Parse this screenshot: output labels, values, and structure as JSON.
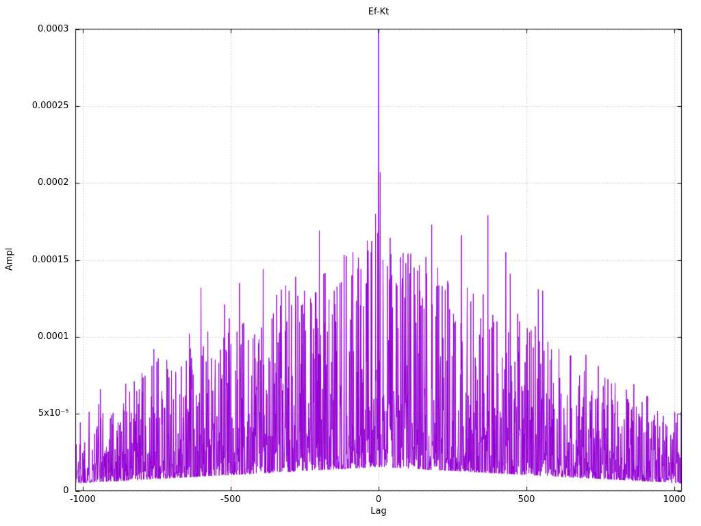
{
  "figure": {
    "background": "#ffffff",
    "border_color": "#000000",
    "grid_color": "#a8a8a8"
  },
  "chart_data": {
    "type": "line",
    "title": "Ef-Kt",
    "xlabel": "Lag",
    "ylabel": "Ampl",
    "xlim": [
      -1024,
      1024
    ],
    "ylim": [
      0,
      0.0003
    ],
    "grid": "dotted",
    "legend": "none",
    "series_color": "#9400d3",
    "x_ticks": {
      "values": [
        -1000,
        -500,
        0,
        500,
        1000
      ],
      "labels": [
        "-1000",
        "-500",
        "0",
        "500",
        "1000"
      ]
    },
    "y_ticks": {
      "values": [
        0,
        5e-05,
        0.0001,
        0.00015,
        0.0002,
        0.00025,
        0.0003
      ],
      "labels": [
        "0",
        "5x10⁻⁵",
        "0.0001",
        "0.00015",
        "0.0002",
        "0.00025",
        "0.0003"
      ]
    },
    "description": "Noisy cross-correlation amplitude vs lag; roughly triangular noise envelope peaking at lag 0 with a dominant spike reaching the top of the axis (0.0003) at lag 0.",
    "center_peak": [
      0,
      0.0003
    ],
    "secondary_peak": [
      6,
      0.000207
    ],
    "noise_model": {
      "seed": 1337,
      "n_points": 2201,
      "envelope_base": 2.1e-05,
      "envelope_span": 5.6e-05,
      "envelope_halfwidth": 1080,
      "r_min": 0.2,
      "r_gain": 2.0,
      "r_exp": 3
    },
    "notable_peaks": [
      [
        -940,
        6.6e-05
      ],
      [
        -860,
        5.2e-05
      ],
      [
        -820,
        5e-05
      ],
      [
        -760,
        9.2e-05
      ],
      [
        -745,
        8.6e-05
      ],
      [
        -700,
        7.8e-05
      ],
      [
        -640,
        0.000102
      ],
      [
        -600,
        0.000132
      ],
      [
        -560,
        6.5e-05
      ],
      [
        -520,
        0.000121
      ],
      [
        -505,
        0.000112
      ],
      [
        -470,
        0.000135
      ],
      [
        -440,
        9.8e-05
      ],
      [
        -390,
        0.000144
      ],
      [
        -350,
        8.3e-05
      ],
      [
        -330,
        0.000108
      ],
      [
        -310,
        0.00011
      ],
      [
        -280,
        0.000139
      ],
      [
        -250,
        0.00013
      ],
      [
        -230,
        0.000125
      ],
      [
        -200,
        0.000169
      ],
      [
        -185,
        0.000141
      ],
      [
        -150,
        0.00013
      ],
      [
        -130,
        0.000135
      ],
      [
        -110,
        0.000145
      ],
      [
        -90,
        0.00014
      ],
      [
        -75,
        0.000122
      ],
      [
        -60,
        0.000144
      ],
      [
        -40,
        0.000135
      ],
      [
        -25,
        0.000155
      ],
      [
        -10,
        0.00018
      ],
      [
        0,
        0.0003
      ],
      [
        6,
        0.000207
      ],
      [
        15,
        0.00015
      ],
      [
        30,
        0.000146
      ],
      [
        45,
        0.00014
      ],
      [
        60,
        0.000135
      ],
      [
        80,
        0.000138
      ],
      [
        100,
        0.000154
      ],
      [
        120,
        0.000145
      ],
      [
        140,
        0.00013
      ],
      [
        160,
        0.000152
      ],
      [
        180,
        0.000173
      ],
      [
        200,
        0.000145
      ],
      [
        215,
        0.000133
      ],
      [
        240,
        0.000118
      ],
      [
        260,
        0.00011
      ],
      [
        280,
        0.000166
      ],
      [
        300,
        0.000132
      ],
      [
        320,
        0.000128
      ],
      [
        345,
        0.000112
      ],
      [
        370,
        0.000179
      ],
      [
        400,
        0.00011
      ],
      [
        430,
        0.000155
      ],
      [
        445,
        0.000141
      ],
      [
        470,
        0.000115
      ],
      [
        500,
        9.5e-05
      ],
      [
        540,
        0.000131
      ],
      [
        555,
        0.00013
      ],
      [
        580,
        8.5e-05
      ],
      [
        610,
        9.2e-05
      ],
      [
        650,
        8.8e-05
      ],
      [
        680,
        7.5e-05
      ],
      [
        720,
        6.2e-05
      ],
      [
        760,
        6.8e-05
      ],
      [
        800,
        7e-05
      ],
      [
        840,
        5.5e-05
      ],
      [
        880,
        5e-05
      ],
      [
        930,
        4.6e-05
      ],
      [
        975,
        4.2e-05
      ]
    ]
  }
}
